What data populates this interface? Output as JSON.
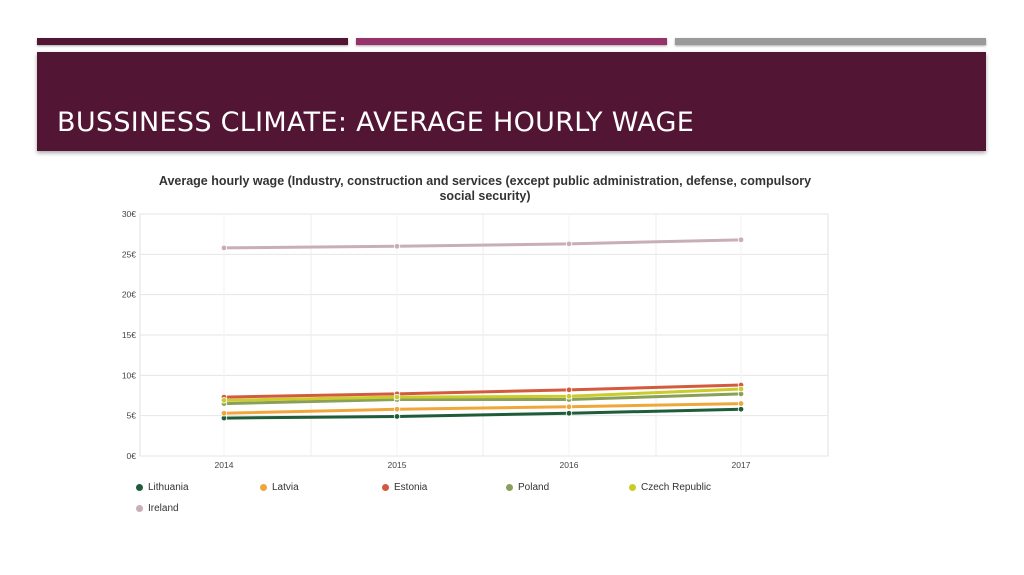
{
  "slide": {
    "title": "BUSSINESS CLIMATE: AVERAGE HOURLY WAGE",
    "title_band_color": "#521634",
    "accent_colors": [
      "#521634",
      "#96336a",
      "#9a9a9a"
    ]
  },
  "chart_data": {
    "type": "line",
    "title": "Average hourly wage (Industry, construction and services (except public administration, defense, compulsory social security)",
    "categories": [
      "2014",
      "2015",
      "2016",
      "2017"
    ],
    "ylim": [
      0,
      30
    ],
    "yticks": [
      "0€",
      "5€",
      "10€",
      "15€",
      "20€",
      "25€",
      "30€"
    ],
    "grid": true,
    "legend_position": "bottom",
    "series": [
      {
        "name": "Lithuania",
        "color": "#1f5c3a",
        "values": [
          4.7,
          4.9,
          5.3,
          5.8
        ]
      },
      {
        "name": "Latvia",
        "color": "#f0a73a",
        "values": [
          5.3,
          5.8,
          6.1,
          6.5
        ]
      },
      {
        "name": "Estonia",
        "color": "#d45a3e",
        "values": [
          7.3,
          7.7,
          8.2,
          8.8
        ]
      },
      {
        "name": "Poland",
        "color": "#8aa05a",
        "values": [
          6.5,
          7.0,
          7.0,
          7.7
        ]
      },
      {
        "name": "Czech Republic",
        "color": "#c9cc2a",
        "values": [
          6.9,
          7.3,
          7.4,
          8.3
        ]
      },
      {
        "name": "Ireland",
        "color": "#c9aeb8",
        "values": [
          25.8,
          26.0,
          26.3,
          26.8
        ]
      }
    ]
  }
}
